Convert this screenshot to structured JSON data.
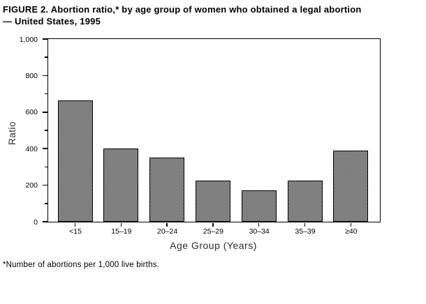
{
  "figure": {
    "title_line1": "FIGURE 2. Abortion ratio,* by age group of women who obtained a legal abortion",
    "title_line2": "— United States, 1995",
    "footnote": "*Number of abortions per 1,000 live births."
  },
  "chart_data": {
    "type": "bar",
    "title": "FIGURE 2. Abortion ratio,* by age group of women who obtained a legal abortion — United States, 1995",
    "categories": [
      "<15",
      "15–19",
      "20–24",
      "25–29",
      "30–34",
      "35–39",
      "≥40"
    ],
    "values": [
      665,
      400,
      350,
      225,
      170,
      225,
      390
    ],
    "xlabel": "Age Group (Years)",
    "ylabel": "Ratio",
    "ylim": [
      0,
      1000
    ],
    "y_major_ticks": [
      0,
      200,
      400,
      600,
      800,
      1000
    ],
    "y_tick_labels": [
      "0",
      "200",
      "400",
      "600",
      "800",
      "1,000"
    ],
    "y_minor_ticks": [
      100,
      300,
      500,
      700,
      900
    ],
    "grid": "off",
    "legend_position": "none",
    "bar_fill": "black-white checkerboard dither",
    "bar_border_color": "#000000",
    "axis_color": "#000000",
    "background_color": "#ffffff",
    "text_color": "#000000"
  }
}
